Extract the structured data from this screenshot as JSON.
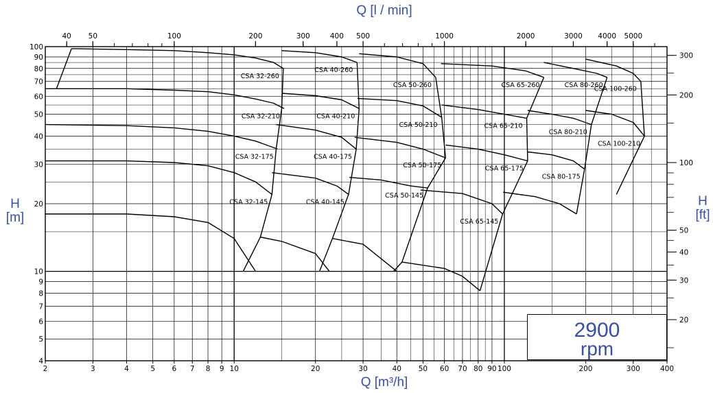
{
  "chart_data": {
    "type": "line",
    "title": "",
    "x_scale": "log",
    "y_scale": "log",
    "xlabel": "Q [m³/h]",
    "xlabel_top": "Q [l / min]",
    "ylabel": "H [m]",
    "ylabel_right": "H [ft]",
    "xlim": [
      2,
      400
    ],
    "ylim": [
      4,
      100
    ],
    "x_ticks": [
      2,
      3,
      4,
      5,
      6,
      7,
      8,
      9,
      10,
      20,
      30,
      40,
      50,
      60,
      70,
      80,
      90,
      100,
      200,
      300,
      400
    ],
    "x_tick_labels": [
      "2",
      "3",
      "4",
      "5",
      "6",
      "7",
      "8",
      "9",
      "10",
      "20",
      "30",
      "40",
      "50",
      "60",
      "70",
      "80",
      "90",
      "100",
      "200",
      "300",
      "400"
    ],
    "x_top_ticks": [
      40,
      50,
      100,
      200,
      300,
      400,
      500,
      1000,
      2000,
      3000,
      4000,
      5000
    ],
    "x_top_tick_labels": [
      "40",
      "50",
      "100",
      "200",
      "300",
      "400",
      "500",
      "1000",
      "2000",
      "3000",
      "4000",
      "5000"
    ],
    "y_ticks": [
      4,
      5,
      6,
      7,
      8,
      9,
      10,
      20,
      30,
      40,
      50,
      60,
      70,
      80,
      90,
      100
    ],
    "y_tick_labels": [
      "4",
      "5",
      "6",
      "7",
      "8",
      "9",
      "10",
      "20",
      "30",
      "40",
      "50",
      "60",
      "70",
      "80",
      "90",
      "100"
    ],
    "y_right_ticks": [
      20,
      30,
      40,
      50,
      100,
      200,
      300
    ],
    "y_right_tick_labels": [
      "20",
      "30",
      "40",
      "50",
      "100",
      "200",
      "300"
    ],
    "grid": true,
    "annotation": {
      "speed": "2900",
      "unit": "rpm"
    },
    "series": [
      {
        "name": "CSA 32-260",
        "x": [
          2.5,
          4,
          6,
          8,
          10,
          12,
          14,
          15.2
        ],
        "y": [
          98,
          97,
          96,
          94,
          92,
          89,
          85,
          80
        ]
      },
      {
        "name": "CSA 32-210",
        "x": [
          2,
          4,
          6,
          8,
          10,
          12,
          14,
          15.3
        ],
        "y": [
          65,
          65,
          64,
          63,
          61,
          58.5,
          56,
          53
        ]
      },
      {
        "name": "CSA 32-175",
        "x": [
          2,
          4,
          6,
          8,
          10,
          12,
          14.5
        ],
        "y": [
          45,
          44.5,
          43.5,
          42,
          40,
          38,
          35
        ]
      },
      {
        "name": "CSA 32-145",
        "x": [
          2,
          4,
          6,
          8,
          10,
          12,
          13.8
        ],
        "y": [
          31,
          31,
          30.5,
          29.5,
          27.5,
          25,
          22
        ]
      },
      {
        "name": "",
        "x": [
          2,
          4,
          6,
          8,
          10,
          12
        ],
        "y": [
          18,
          18,
          17.5,
          16.5,
          14,
          10
        ]
      },
      {
        "name": "CSA 40-260",
        "x": [
          15,
          20,
          25,
          28.5
        ],
        "y": [
          96,
          94,
          90,
          85
        ]
      },
      {
        "name": "CSA 40-210",
        "x": [
          15,
          20,
          25,
          29
        ],
        "y": [
          62,
          60.5,
          58,
          53
        ]
      },
      {
        "name": "CSA 40-175",
        "x": [
          14.3,
          20,
          25,
          28.3
        ],
        "y": [
          45,
          42.5,
          39.5,
          35
        ]
      },
      {
        "name": "CSA 40-145",
        "x": [
          13.8,
          20,
          24,
          26.5
        ],
        "y": [
          27.5,
          26,
          24,
          22
        ]
      },
      {
        "name": "",
        "x": [
          12.5,
          15,
          20,
          22.5
        ],
        "y": [
          14.2,
          13.6,
          12,
          10
        ]
      },
      {
        "name": "CSA 50-260",
        "x": [
          29,
          40,
          50,
          55.7
        ],
        "y": [
          93,
          90,
          84,
          73
        ]
      },
      {
        "name": "CSA 50-210",
        "x": [
          28.6,
          40,
          50,
          58.6
        ],
        "y": [
          58.8,
          57.5,
          54.5,
          48.5
        ]
      },
      {
        "name": "CSA 50-175",
        "x": [
          27.9,
          40,
          50,
          60.6
        ],
        "y": [
          39.5,
          37.5,
          35,
          32
        ]
      },
      {
        "name": "CSA 50-145",
        "x": [
          26.7,
          35,
          45,
          52
        ],
        "y": [
          26.2,
          25.5,
          24,
          23.5
        ]
      },
      {
        "name": "",
        "x": [
          23.1,
          30,
          40
        ],
        "y": [
          14,
          13.2,
          10
        ]
      },
      {
        "name": "CSA 65-260",
        "x": [
          58.3,
          90,
          120,
          140
        ],
        "y": [
          84,
          82,
          78,
          73
        ]
      },
      {
        "name": "CSA 65-210",
        "x": [
          58.6,
          80,
          100,
          121
        ],
        "y": [
          55,
          52.5,
          50,
          48
        ]
      },
      {
        "name": "CSA 65-175",
        "x": [
          60.6,
          80,
          100,
          122
        ],
        "y": [
          36.5,
          35,
          33,
          31
        ]
      },
      {
        "name": "CSA 65-145",
        "x": [
          49,
          70,
          90,
          98.5
        ],
        "y": [
          23,
          22.2,
          20,
          18
        ]
      },
      {
        "name": "",
        "x": [
          41.8,
          60,
          70,
          81.3
        ],
        "y": [
          11,
          10.3,
          9.5,
          8.2
        ]
      },
      {
        "name": "CSA 80-260",
        "x": [
          140,
          180,
          220,
          240
        ],
        "y": [
          85,
          80,
          76,
          73
        ]
      },
      {
        "name": "CSA 80-210",
        "x": [
          122,
          150,
          180,
          210
        ],
        "y": [
          52,
          50,
          48,
          45
        ]
      },
      {
        "name": "CSA 80-175",
        "x": [
          122,
          150,
          180,
          198
        ],
        "y": [
          34,
          33,
          31,
          28.5
        ]
      },
      {
        "name": "",
        "x": [
          99,
          130,
          160,
          185
        ],
        "y": [
          22.5,
          21.5,
          20,
          18
        ]
      },
      {
        "name": "CSA 100-260",
        "x": [
          200,
          260,
          300,
          320
        ],
        "y": [
          88,
          82,
          76,
          70
        ]
      },
      {
        "name": "CSA 100-210",
        "x": [
          200,
          250,
          300,
          330
        ],
        "y": [
          52,
          50,
          46,
          40
        ]
      }
    ],
    "boundaries": [
      {
        "name": "",
        "x": [
          2.2,
          2.5
        ],
        "y": [
          65,
          98
        ]
      },
      {
        "name": "",
        "x": [
          10.8,
          12.5,
          13.8,
          14.3,
          15,
          15.2
        ],
        "y": [
          10,
          14.2,
          22,
          35,
          53,
          80
        ]
      },
      {
        "name": "",
        "x": [
          20.7,
          23.1,
          26.5,
          28.3,
          29,
          28.5
        ],
        "y": [
          10,
          14,
          22,
          35,
          53,
          85
        ]
      },
      {
        "name": "",
        "x": [
          38.9,
          41.8,
          52,
          60.6,
          58.6,
          55.7
        ],
        "y": [
          10,
          11,
          23.5,
          32,
          48.5,
          73
        ]
      },
      {
        "name": "",
        "x": [
          81.3,
          98.5,
          122,
          121,
          140
        ],
        "y": [
          8.2,
          18,
          31,
          48,
          73
        ]
      },
      {
        "name": "",
        "x": [
          185,
          198,
          210,
          240
        ],
        "y": [
          18,
          28.5,
          45,
          73
        ]
      },
      {
        "name": "",
        "x": [
          260,
          330,
          320
        ],
        "y": [
          22,
          40,
          70
        ]
      }
    ]
  }
}
